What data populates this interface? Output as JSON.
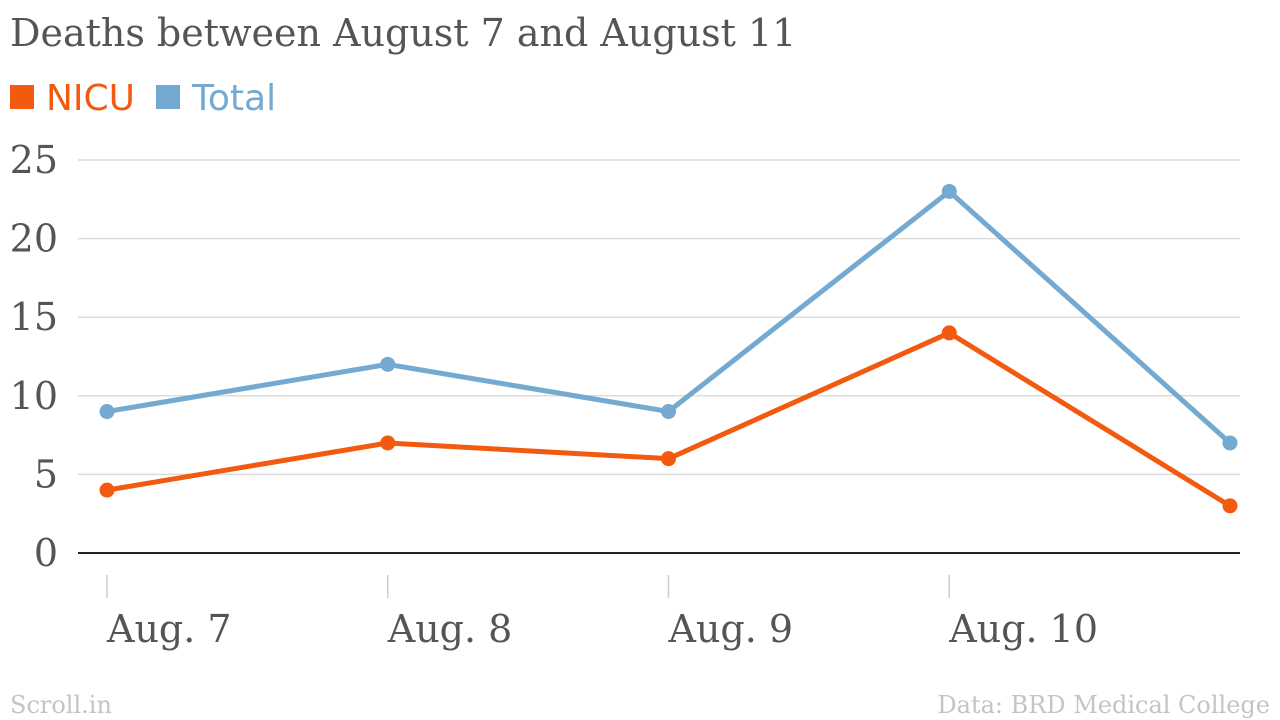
{
  "chart_data": {
    "type": "line",
    "title": "Deaths between August 7 and August 11",
    "categories": [
      "Aug. 7",
      "Aug. 8",
      "Aug. 9",
      "Aug. 10",
      ""
    ],
    "series": [
      {
        "name": "NICU",
        "values": [
          4,
          7,
          6,
          14,
          3
        ],
        "color": "#f25a0f"
      },
      {
        "name": "Total",
        "values": [
          9,
          12,
          9,
          23,
          7
        ],
        "color": "#74aad1"
      }
    ],
    "ylim": [
      0,
      25
    ],
    "yticks": [
      "0",
      "5",
      "10",
      "15",
      "20",
      "25"
    ],
    "grid": true,
    "legend_position": "top-left"
  },
  "footer": {
    "source_left": "Scroll.in",
    "source_right": "Data: BRD Medical College"
  }
}
